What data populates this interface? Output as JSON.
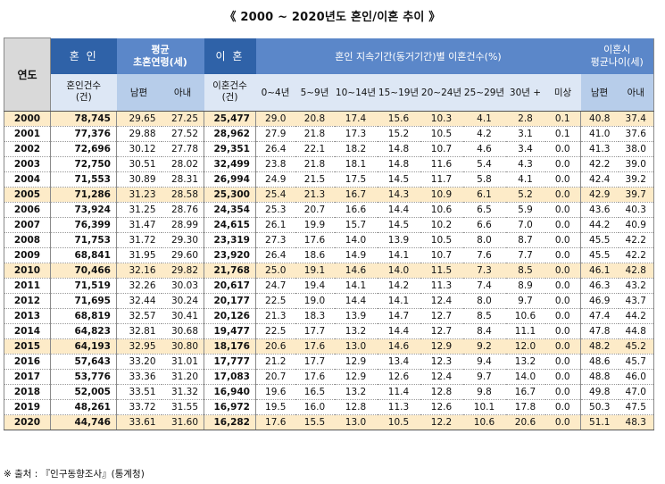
{
  "title": "《 2000 ~ 2020년도 혼인/이혼 추이 》",
  "headers": {
    "year": "연도",
    "marriage": "혼 인",
    "avg_first_age": "평균\n초혼연령(세)",
    "divorce": "이 혼",
    "duration_group": "혼인 지속기간(동거기간)별 이혼건수(%)",
    "avg_divorce_age": "이혼시\n평균나이(세)",
    "marriage_count": "혼인건수\n(건)",
    "husband": "남편",
    "wife": "아내",
    "divorce_count": "이혼건수\n(건)",
    "d0_4": "0~4년",
    "d5_9": "5~9년",
    "d10_14": "10~14년",
    "d15_19": "15~19년",
    "d20_24": "20~24년",
    "d25_29": "25~29년",
    "d30": "30년 +",
    "unknown": "미상",
    "div_husband": "남편",
    "div_wife": "아내"
  },
  "rows": [
    {
      "year": "2000",
      "marriages": "78,745",
      "fh": "29.65",
      "fw": "27.25",
      "divorces": "25,477",
      "d1": "29.0",
      "d2": "20.8",
      "d3": "17.4",
      "d4": "15.6",
      "d5": "10.3",
      "d6": "4.1",
      "d7": "2.8",
      "d8": "0.1",
      "dh": "40.8",
      "dw": "37.4",
      "highlight": true
    },
    {
      "year": "2001",
      "marriages": "77,376",
      "fh": "29.88",
      "fw": "27.52",
      "divorces": "28,962",
      "d1": "27.9",
      "d2": "21.8",
      "d3": "17.3",
      "d4": "15.2",
      "d5": "10.5",
      "d6": "4.2",
      "d7": "3.1",
      "d8": "0.1",
      "dh": "41.0",
      "dw": "37.6",
      "highlight": false
    },
    {
      "year": "2002",
      "marriages": "72,696",
      "fh": "30.12",
      "fw": "27.78",
      "divorces": "29,351",
      "d1": "26.4",
      "d2": "22.1",
      "d3": "18.2",
      "d4": "14.8",
      "d5": "10.7",
      "d6": "4.6",
      "d7": "3.4",
      "d8": "0.0",
      "dh": "41.3",
      "dw": "38.0",
      "highlight": false
    },
    {
      "year": "2003",
      "marriages": "72,750",
      "fh": "30.51",
      "fw": "28.02",
      "divorces": "32,499",
      "d1": "23.8",
      "d2": "21.8",
      "d3": "18.1",
      "d4": "14.8",
      "d5": "11.6",
      "d6": "5.4",
      "d7": "4.3",
      "d8": "0.0",
      "dh": "42.2",
      "dw": "39.0",
      "highlight": false
    },
    {
      "year": "2004",
      "marriages": "71,553",
      "fh": "30.89",
      "fw": "28.31",
      "divorces": "26,994",
      "d1": "24.9",
      "d2": "21.5",
      "d3": "17.5",
      "d4": "14.5",
      "d5": "11.7",
      "d6": "5.8",
      "d7": "4.1",
      "d8": "0.0",
      "dh": "42.4",
      "dw": "39.2",
      "highlight": false
    },
    {
      "year": "2005",
      "marriages": "71,286",
      "fh": "31.23",
      "fw": "28.58",
      "divorces": "25,300",
      "d1": "25.4",
      "d2": "21.3",
      "d3": "16.7",
      "d4": "14.3",
      "d5": "10.9",
      "d6": "6.1",
      "d7": "5.2",
      "d8": "0.0",
      "dh": "42.9",
      "dw": "39.7",
      "highlight": true
    },
    {
      "year": "2006",
      "marriages": "73,924",
      "fh": "31.25",
      "fw": "28.76",
      "divorces": "24,354",
      "d1": "25.3",
      "d2": "20.7",
      "d3": "16.6",
      "d4": "14.4",
      "d5": "10.6",
      "d6": "6.5",
      "d7": "5.9",
      "d8": "0.0",
      "dh": "43.6",
      "dw": "40.3",
      "highlight": false
    },
    {
      "year": "2007",
      "marriages": "76,399",
      "fh": "31.47",
      "fw": "28.99",
      "divorces": "24,615",
      "d1": "26.1",
      "d2": "19.9",
      "d3": "15.7",
      "d4": "14.5",
      "d5": "10.2",
      "d6": "6.6",
      "d7": "7.0",
      "d8": "0.0",
      "dh": "44.2",
      "dw": "40.9",
      "highlight": false
    },
    {
      "year": "2008",
      "marriages": "71,753",
      "fh": "31.72",
      "fw": "29.30",
      "divorces": "23,319",
      "d1": "27.3",
      "d2": "17.6",
      "d3": "14.0",
      "d4": "13.9",
      "d5": "10.5",
      "d6": "8.0",
      "d7": "8.7",
      "d8": "0.0",
      "dh": "45.5",
      "dw": "42.2",
      "highlight": false
    },
    {
      "year": "2009",
      "marriages": "68,841",
      "fh": "31.95",
      "fw": "29.60",
      "divorces": "23,920",
      "d1": "26.4",
      "d2": "18.6",
      "d3": "14.9",
      "d4": "14.1",
      "d5": "10.7",
      "d6": "7.6",
      "d7": "7.7",
      "d8": "0.0",
      "dh": "45.5",
      "dw": "42.2",
      "highlight": false
    },
    {
      "year": "2010",
      "marriages": "70,466",
      "fh": "32.16",
      "fw": "29.82",
      "divorces": "21,768",
      "d1": "25.0",
      "d2": "19.1",
      "d3": "14.6",
      "d4": "14.0",
      "d5": "11.5",
      "d6": "7.3",
      "d7": "8.5",
      "d8": "0.0",
      "dh": "46.1",
      "dw": "42.8",
      "highlight": true
    },
    {
      "year": "2011",
      "marriages": "71,519",
      "fh": "32.26",
      "fw": "30.03",
      "divorces": "20,617",
      "d1": "24.7",
      "d2": "19.4",
      "d3": "14.1",
      "d4": "14.2",
      "d5": "11.3",
      "d6": "7.4",
      "d7": "8.9",
      "d8": "0.0",
      "dh": "46.3",
      "dw": "43.2",
      "highlight": false
    },
    {
      "year": "2012",
      "marriages": "71,695",
      "fh": "32.44",
      "fw": "30.24",
      "divorces": "20,177",
      "d1": "22.5",
      "d2": "19.0",
      "d3": "14.4",
      "d4": "14.1",
      "d5": "12.4",
      "d6": "8.0",
      "d7": "9.7",
      "d8": "0.0",
      "dh": "46.9",
      "dw": "43.7",
      "highlight": false
    },
    {
      "year": "2013",
      "marriages": "68,819",
      "fh": "32.57",
      "fw": "30.41",
      "divorces": "20,126",
      "d1": "21.3",
      "d2": "18.3",
      "d3": "13.9",
      "d4": "14.7",
      "d5": "12.7",
      "d6": "8.5",
      "d7": "10.6",
      "d8": "0.0",
      "dh": "47.4",
      "dw": "44.2",
      "highlight": false
    },
    {
      "year": "2014",
      "marriages": "64,823",
      "fh": "32.81",
      "fw": "30.68",
      "divorces": "19,477",
      "d1": "22.5",
      "d2": "17.7",
      "d3": "13.2",
      "d4": "14.4",
      "d5": "12.7",
      "d6": "8.4",
      "d7": "11.1",
      "d8": "0.0",
      "dh": "47.8",
      "dw": "44.8",
      "highlight": false
    },
    {
      "year": "2015",
      "marriages": "64,193",
      "fh": "32.95",
      "fw": "30.80",
      "divorces": "18,176",
      "d1": "20.6",
      "d2": "17.6",
      "d3": "13.0",
      "d4": "14.6",
      "d5": "12.9",
      "d6": "9.2",
      "d7": "12.0",
      "d8": "0.0",
      "dh": "48.2",
      "dw": "45.2",
      "highlight": true
    },
    {
      "year": "2016",
      "marriages": "57,643",
      "fh": "33.20",
      "fw": "31.01",
      "divorces": "17,777",
      "d1": "21.2",
      "d2": "17.7",
      "d3": "12.9",
      "d4": "13.4",
      "d5": "12.3",
      "d6": "9.4",
      "d7": "13.2",
      "d8": "0.0",
      "dh": "48.6",
      "dw": "45.7",
      "highlight": false
    },
    {
      "year": "2017",
      "marriages": "53,776",
      "fh": "33.36",
      "fw": "31.20",
      "divorces": "17,083",
      "d1": "20.7",
      "d2": "17.6",
      "d3": "12.9",
      "d4": "12.6",
      "d5": "12.4",
      "d6": "9.7",
      "d7": "14.0",
      "d8": "0.0",
      "dh": "48.8",
      "dw": "46.0",
      "highlight": false
    },
    {
      "year": "2018",
      "marriages": "52,005",
      "fh": "33.51",
      "fw": "31.32",
      "divorces": "16,940",
      "d1": "19.6",
      "d2": "16.5",
      "d3": "13.2",
      "d4": "11.4",
      "d5": "12.8",
      "d6": "9.8",
      "d7": "16.7",
      "d8": "0.0",
      "dh": "49.8",
      "dw": "47.0",
      "highlight": false
    },
    {
      "year": "2019",
      "marriages": "48,261",
      "fh": "33.72",
      "fw": "31.55",
      "divorces": "16,972",
      "d1": "19.5",
      "d2": "16.0",
      "d3": "12.8",
      "d4": "11.3",
      "d5": "12.6",
      "d6": "10.1",
      "d7": "17.8",
      "d8": "0.0",
      "dh": "50.3",
      "dw": "47.5",
      "highlight": false
    },
    {
      "year": "2020",
      "marriages": "44,746",
      "fh": "33.61",
      "fw": "31.60",
      "divorces": "16,282",
      "d1": "17.6",
      "d2": "15.5",
      "d3": "13.0",
      "d4": "10.5",
      "d5": "12.2",
      "d6": "10.6",
      "d7": "20.6",
      "d8": "0.0",
      "dh": "51.1",
      "dw": "48.3",
      "highlight": true
    }
  ],
  "source_note": "※ 출처 : 『인구동향조사』(통계청)",
  "colors": {
    "header_dark": "#2f62a8",
    "header_mid": "#5b87c9",
    "header_light": "#dde7f5",
    "highlight_row": "#fdebc8",
    "year_header": "#d9d9d9"
  }
}
